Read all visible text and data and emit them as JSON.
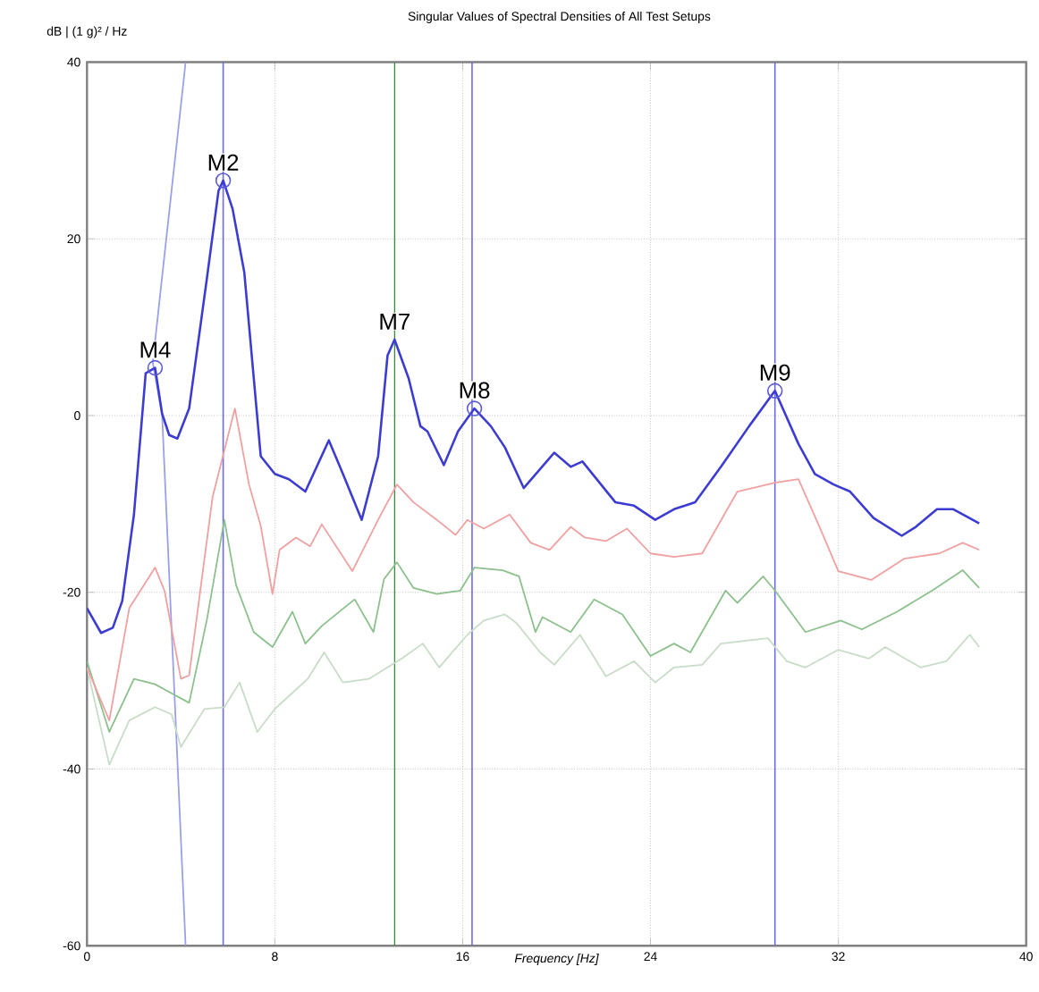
{
  "chart_data": {
    "type": "line",
    "title": "Singular Values of Spectral Densities of All Test Setups",
    "xlabel": "Frequency [Hz]",
    "ylabel": "dB | (1 g)² / Hz",
    "xlim": [
      0,
      40
    ],
    "ylim": [
      -60,
      40
    ],
    "xticks": [
      0,
      8,
      16,
      24,
      32,
      40
    ],
    "yticks": [
      -60,
      -40,
      -20,
      0,
      20,
      40
    ],
    "grid": true,
    "marker": "none",
    "line_style": "solid",
    "series": [
      {
        "color": "#9aa0e8",
        "type": "line",
        "x": [
          4.2,
          2.8,
          3.2,
          4.2
        ],
        "values": [
          40,
          6,
          0,
          -60
        ]
      },
      {
        "color": "#c8dcc8",
        "x": [
          0,
          0.95,
          1.8,
          2.9,
          3.6,
          4.0,
          5.0,
          5.85,
          6.5,
          7.25,
          8.0,
          9.4,
          10.1,
          10.9,
          12.0,
          13.4,
          14.3,
          15.0,
          16.2,
          16.9,
          17.8,
          18.3,
          19.3,
          19.9,
          21.0,
          22.1,
          23.3,
          24.2,
          25.0,
          26.2,
          27.0,
          29.0,
          29.8,
          30.6,
          32.0,
          33.3,
          34.0,
          35.5,
          36.6,
          37.6,
          38.0
        ],
        "values": [
          -28.5,
          -39.5,
          -34.5,
          -33,
          -33.8,
          -37.5,
          -33.2,
          -33,
          -30.2,
          -35.8,
          -33.2,
          -29.8,
          -26.8,
          -30.2,
          -29.8,
          -27.5,
          -25.8,
          -28.5,
          -24.8,
          -23.2,
          -22.5,
          -23.5,
          -26.8,
          -28.2,
          -24.8,
          -29.5,
          -27.8,
          -30.2,
          -28.5,
          -28.2,
          -25.8,
          -25.2,
          -27.8,
          -28.5,
          -26.5,
          -27.5,
          -26.2,
          -28.5,
          -27.8,
          -24.8,
          -26.2
        ]
      },
      {
        "color": "#8cc08c",
        "x": [
          0,
          0.95,
          2.0,
          2.9,
          3.3,
          4.35,
          5.1,
          5.85,
          6.35,
          7.1,
          7.9,
          8.75,
          9.3,
          10.0,
          11.4,
          12.2,
          12.65,
          13.2,
          13.9,
          14.9,
          15.9,
          16.5,
          17.7,
          18.4,
          19.1,
          19.4,
          20.6,
          21.6,
          22.8,
          24.0,
          25.0,
          25.7,
          27.2,
          27.7,
          28.8,
          29.3,
          30.6,
          32.1,
          33.0,
          34.5,
          36.0,
          37.3,
          38.0
        ],
        "values": [
          -27.8,
          -35.8,
          -29.8,
          -30.4,
          -31,
          -32.5,
          -23.2,
          -11.8,
          -19.2,
          -24.5,
          -26.2,
          -22.2,
          -25.8,
          -23.8,
          -20.8,
          -24.5,
          -18.5,
          -16.6,
          -19.5,
          -20.2,
          -19.8,
          -17.2,
          -17.5,
          -18.2,
          -24.5,
          -22.8,
          -24.5,
          -20.8,
          -22.5,
          -27.2,
          -25.8,
          -26.8,
          -19.8,
          -21.2,
          -18.2,
          -19.8,
          -24.5,
          -23.2,
          -24.2,
          -22.2,
          -19.8,
          -17.5,
          -19.5
        ]
      },
      {
        "color": "#f0a0a0",
        "x": [
          0,
          0.95,
          1.8,
          2.9,
          3.3,
          4.0,
          4.35,
          5.35,
          6.3,
          6.9,
          7.4,
          7.9,
          8.2,
          8.9,
          9.5,
          10.0,
          11.3,
          12.4,
          13.2,
          13.9,
          14.9,
          15.7,
          16.2,
          16.9,
          18.0,
          18.9,
          19.7,
          20.6,
          21.2,
          22.1,
          23.0,
          24.0,
          25.0,
          26.2,
          27.7,
          29.3,
          30.3,
          31.2,
          32.0,
          33.4,
          34.8,
          36.3,
          37.3,
          38.0
        ],
        "values": [
          -28.5,
          -34.5,
          -21.8,
          -17.2,
          -19.8,
          -29.8,
          -29.4,
          -9.2,
          0.8,
          -7.8,
          -12.5,
          -20.2,
          -15.2,
          -13.8,
          -14.8,
          -12.3,
          -17.6,
          -11.8,
          -7.8,
          -9.8,
          -11.8,
          -13.5,
          -11.8,
          -12.8,
          -11.2,
          -14.4,
          -15.2,
          -12.6,
          -13.8,
          -14.2,
          -12.8,
          -15.6,
          -16,
          -15.6,
          -8.6,
          -7.6,
          -7.2,
          -12.6,
          -17.6,
          -18.6,
          -16.2,
          -15.6,
          -14.4,
          -15.2
        ]
      },
      {
        "color": "#3c3cd2",
        "x": [
          0,
          0.6,
          1.1,
          1.5,
          2.0,
          2.5,
          2.9,
          3.2,
          3.5,
          3.85,
          4.35,
          5.1,
          5.6,
          5.8,
          6.2,
          6.7,
          7.4,
          8.0,
          8.6,
          9.3,
          10.3,
          10.9,
          11.7,
          12.4,
          12.8,
          13.1,
          13.7,
          14.2,
          14.5,
          15.2,
          15.8,
          16.5,
          17.2,
          17.8,
          18.6,
          19.9,
          20.6,
          21.1,
          22.5,
          23.3,
          24.2,
          25.0,
          25.9,
          27.0,
          28.2,
          29.3,
          30.3,
          31.0,
          31.8,
          32.5,
          33.5,
          34.7,
          35.3,
          36.2,
          36.9,
          38.0
        ],
        "values": [
          -21.8,
          -24.6,
          -24,
          -21,
          -11.2,
          4.8,
          5.4,
          0.2,
          -2.2,
          -2.6,
          0.8,
          15.4,
          25.4,
          26.6,
          23.4,
          16.2,
          -4.6,
          -6.6,
          -7.2,
          -8.6,
          -2.8,
          -6.6,
          -11.8,
          -4.6,
          6.8,
          8.6,
          4.2,
          -1.2,
          -1.8,
          -5.6,
          -1.8,
          0.8,
          -1.2,
          -3.6,
          -8.2,
          -4.2,
          -5.8,
          -5.2,
          -9.8,
          -10.2,
          -11.8,
          -10.6,
          -9.8,
          -5.8,
          -1.2,
          2.8,
          -3.2,
          -6.6,
          -7.8,
          -8.6,
          -11.6,
          -13.6,
          -12.6,
          -10.6,
          -10.6,
          -12.2
        ]
      },
      {
        "color": "#5a5ad8",
        "type": "scatter",
        "marker": "circle",
        "x": [
          2.9,
          5.8,
          16.5,
          29.3
        ],
        "values": [
          5.4,
          26.6,
          0.8,
          2.8
        ]
      }
    ],
    "ref_lines": [
      {
        "axis": "x",
        "value": 5.8,
        "color": "#6a6af0"
      },
      {
        "axis": "x",
        "value": 13.1,
        "color": "#3a8a3a"
      },
      {
        "axis": "x",
        "value": 16.4,
        "color": "#6a6af0"
      },
      {
        "axis": "x",
        "value": 29.3,
        "color": "#6a6af0"
      }
    ],
    "annotations": [
      {
        "text": "M4",
        "x": 2.9,
        "y": 5.4
      },
      {
        "text": "M2",
        "x": 5.8,
        "y": 26.6
      },
      {
        "text": "M7",
        "x": 13.1,
        "y": 8.6
      },
      {
        "text": "M8",
        "x": 16.5,
        "y": 0.8
      },
      {
        "text": "M9",
        "x": 29.3,
        "y": 2.8
      }
    ]
  }
}
